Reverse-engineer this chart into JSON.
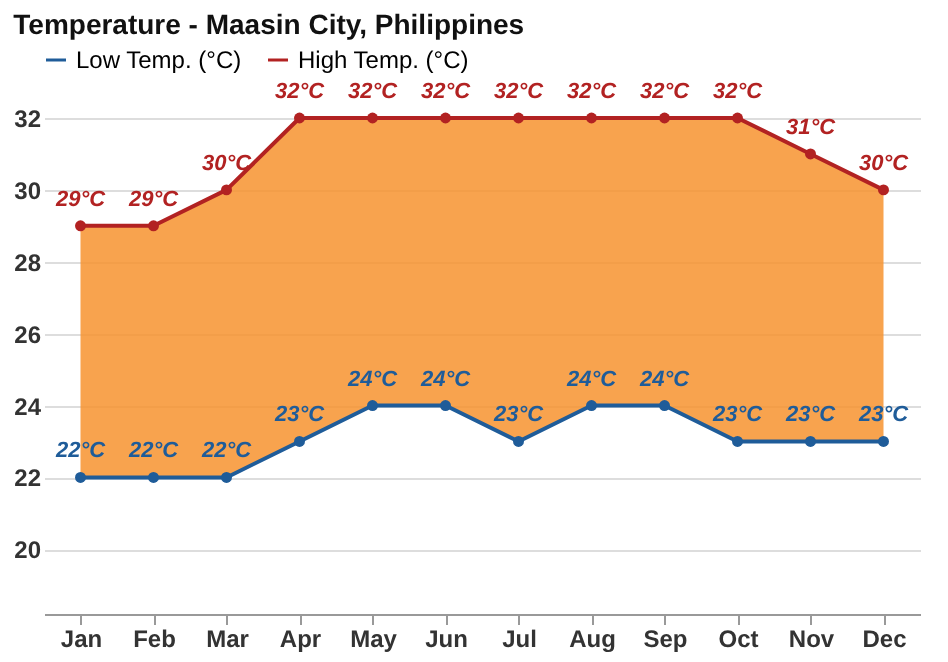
{
  "chart_data": {
    "type": "line",
    "title": "Temperature - Maasin City, Philippines",
    "categories": [
      "Jan",
      "Feb",
      "Mar",
      "Apr",
      "May",
      "Jun",
      "Jul",
      "Aug",
      "Sep",
      "Oct",
      "Nov",
      "Dec"
    ],
    "series": [
      {
        "name": "Low Temp. (°C)",
        "color": "#1f5c99",
        "values": [
          22,
          22,
          22,
          23,
          24,
          24,
          23,
          24,
          24,
          23,
          23,
          23
        ],
        "value_labels": [
          "22°C",
          "22°C",
          "22°C",
          "23°C",
          "24°C",
          "24°C",
          "23°C",
          "24°C",
          "24°C",
          "23°C",
          "23°C",
          "23°C"
        ]
      },
      {
        "name": "High Temp. (°C)",
        "type": "area",
        "color": "#b22222",
        "values": [
          29,
          29,
          30,
          32,
          32,
          32,
          32,
          32,
          32,
          32,
          31,
          30
        ],
        "value_labels": [
          "29°C",
          "29°C",
          "30°C",
          "32°C",
          "32°C",
          "32°C",
          "32°C",
          "32°C",
          "32°C",
          "32°C",
          "31°C",
          "30°C"
        ]
      }
    ],
    "ylim": [
      18.2,
      32
    ],
    "yticks": [
      20,
      22,
      24,
      26,
      28,
      30,
      32
    ],
    "grid": "y",
    "legend": "top left",
    "marker": "circle",
    "line_style": "solid"
  }
}
